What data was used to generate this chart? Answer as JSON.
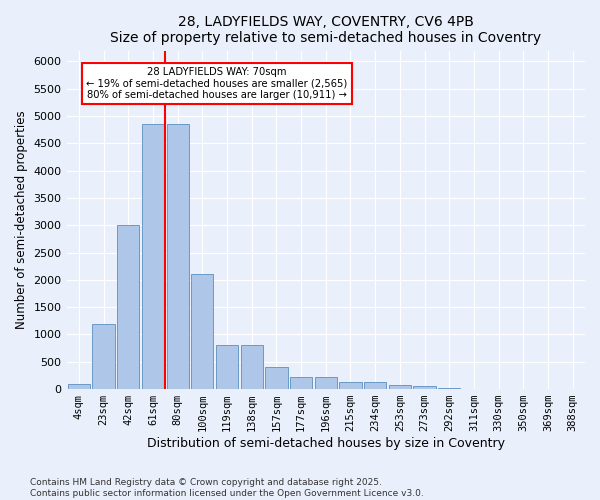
{
  "title1": "28, LADYFIELDS WAY, COVENTRY, CV6 4PB",
  "title2": "Size of property relative to semi-detached houses in Coventry",
  "xlabel": "Distribution of semi-detached houses by size in Coventry",
  "ylabel": "Number of semi-detached properties",
  "categories": [
    "4sqm",
    "23sqm",
    "42sqm",
    "61sqm",
    "80sqm",
    "100sqm",
    "119sqm",
    "138sqm",
    "157sqm",
    "177sqm",
    "196sqm",
    "215sqm",
    "234sqm",
    "253sqm",
    "273sqm",
    "292sqm",
    "311sqm",
    "330sqm",
    "350sqm",
    "369sqm",
    "388sqm"
  ],
  "values": [
    100,
    1200,
    3000,
    4850,
    4850,
    2100,
    800,
    800,
    400,
    220,
    220,
    130,
    130,
    70,
    50,
    20,
    10,
    5,
    5,
    5,
    5
  ],
  "bar_color": "#aec6e8",
  "bar_edge_color": "#5a8fc0",
  "red_line_x": 3.5,
  "red_line_label": "28 LADYFIELDS WAY: 70sqm",
  "pct_smaller": "19%",
  "pct_smaller_n": "2,565",
  "pct_larger": "80%",
  "pct_larger_n": "10,911",
  "ylim": [
    0,
    6200
  ],
  "yticks": [
    0,
    500,
    1000,
    1500,
    2000,
    2500,
    3000,
    3500,
    4000,
    4500,
    5000,
    5500,
    6000
  ],
  "bg_color": "#eaf0fb",
  "footer1": "Contains HM Land Registry data © Crown copyright and database right 2025.",
  "footer2": "Contains public sector information licensed under the Open Government Licence v3.0."
}
